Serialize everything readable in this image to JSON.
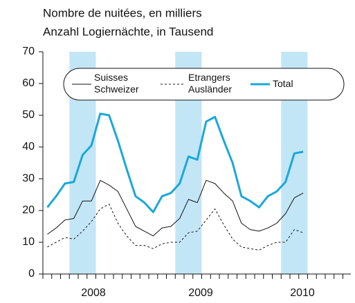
{
  "chart_data": {
    "type": "line",
    "title": "Nombre de nuitées, en milliers",
    "subtitle": "Anzahl Logiernächte, in Tausend",
    "year_labels": [
      "2008",
      "2009",
      "2010"
    ],
    "ylim": [
      0,
      70
    ],
    "yticks": [
      0,
      10,
      20,
      30,
      40,
      50,
      60,
      70
    ],
    "series": [
      {
        "name": "Suisses\nSchweizer",
        "color": "#111111",
        "style": "solid",
        "values": [
          12.5,
          14.5,
          17,
          17.5,
          23,
          23,
          29.5,
          28,
          26,
          20.5,
          15,
          13.5,
          12,
          14.5,
          15,
          17.5,
          23.5,
          22.5,
          29.5,
          28.5,
          25.5,
          23,
          16,
          14,
          13.5,
          14.5,
          16,
          19,
          24,
          25.5
        ]
      },
      {
        "name": "Etrangers\nAusländer",
        "color": "#111111",
        "style": "dashed",
        "values": [
          8.5,
          10,
          11.5,
          11,
          13.5,
          16.5,
          20.5,
          22,
          16,
          12,
          9,
          9,
          8,
          9.5,
          10,
          10,
          13,
          13.5,
          17,
          20.5,
          15.5,
          11,
          8.5,
          8,
          7.5,
          9,
          10,
          10,
          14,
          13
        ]
      },
      {
        "name": "Total",
        "color": "#1aa7dc",
        "style": "thick",
        "values": [
          21,
          24.5,
          28.5,
          29,
          37.5,
          40.5,
          50.5,
          50,
          42,
          33,
          24.5,
          22.5,
          19.5,
          24.5,
          25.5,
          28.5,
          37,
          36,
          48,
          49.5,
          42,
          35,
          24.5,
          23,
          21,
          24.5,
          26,
          29,
          38,
          38.5
        ]
      }
    ]
  }
}
